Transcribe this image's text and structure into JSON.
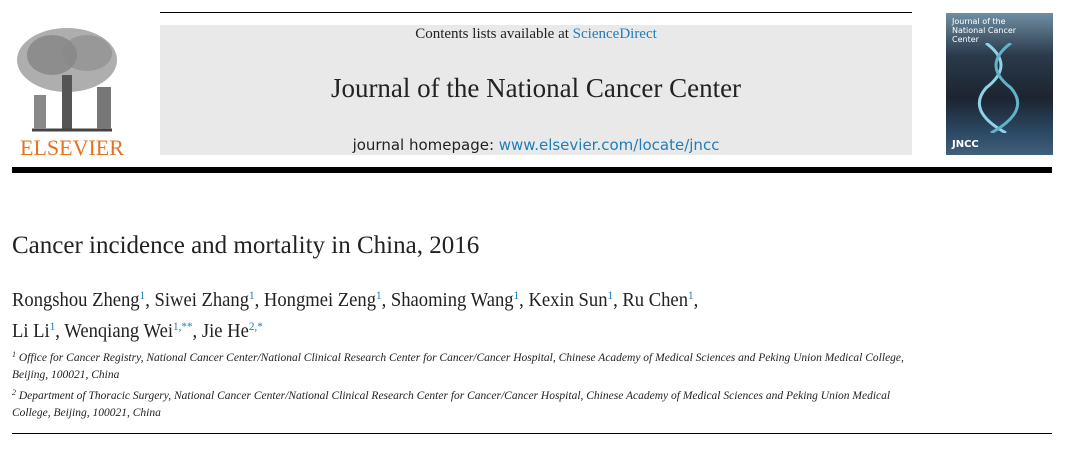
{
  "header": {
    "contents_prefix": "Contents lists available at ",
    "contents_link": "ScienceDirect",
    "journal_title": "Journal of the National Cancer Center",
    "homepage_prefix": "journal homepage: ",
    "homepage_link": "www.elsevier.com/locate/jncc",
    "publisher_logo": "ELSEVIER",
    "cover_title": "Journal of the National Cancer Center",
    "cover_abbrev": "JNCC"
  },
  "article": {
    "title": "Cancer incidence and mortality in China, 2016",
    "authors": [
      {
        "name": "Rongshou Zheng",
        "sup": "1",
        "sep": ", "
      },
      {
        "name": "Siwei Zhang",
        "sup": "1",
        "sep": ", "
      },
      {
        "name": "Hongmei Zeng",
        "sup": "1",
        "sep": ", "
      },
      {
        "name": "Shaoming Wang",
        "sup": "1",
        "sep": ", "
      },
      {
        "name": "Kexin Sun",
        "sup": "1",
        "sep": ", "
      },
      {
        "name": "Ru Chen",
        "sup": "1",
        "sep": ","
      },
      {
        "name": "Li Li",
        "sup": "1",
        "sep": ", "
      },
      {
        "name": "Wenqiang Wei",
        "sup": "1,**",
        "sep": ", "
      },
      {
        "name": "Jie He",
        "sup": "2,*",
        "sep": ""
      }
    ],
    "affiliations": [
      {
        "num": "1",
        "text": "Office for Cancer Registry, National Cancer Center/National Clinical Research Center for Cancer/Cancer Hospital, Chinese Academy of Medical Sciences and Peking Union Medical College, Beijing, 100021, China"
      },
      {
        "num": "2",
        "text": "Department of Thoracic Surgery, National Cancer Center/National Clinical Research Center for Cancer/Cancer Hospital, Chinese Academy of Medical Sciences and Peking Union Medical College, Beijing, 100021, China"
      }
    ]
  }
}
